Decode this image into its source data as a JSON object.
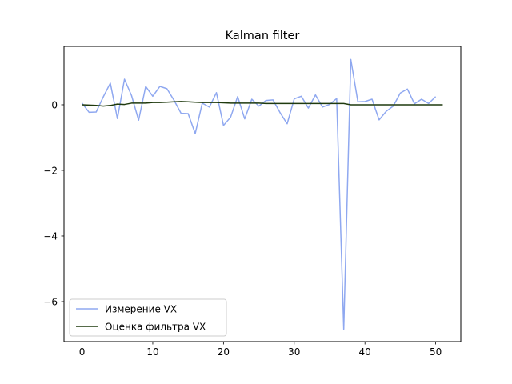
{
  "chart_data": {
    "type": "line",
    "title": "Kalman filter",
    "xlabel": "",
    "ylabel": "",
    "xlim": [
      -2.55,
      53.55
    ],
    "ylim": [
      -7.22,
      1.78
    ],
    "xticks": [
      0,
      10,
      20,
      30,
      40,
      50
    ],
    "yticks": [
      -6,
      -4,
      -2,
      0
    ],
    "ytick_labels": [
      "−6",
      "−4",
      "−2",
      "0"
    ],
    "grid": false,
    "legend_position": "lower-left",
    "series": [
      {
        "name": "Измерение VX",
        "color": "#8fa8f0",
        "x": [
          0,
          1,
          2,
          3,
          4,
          5,
          6,
          7,
          8,
          9,
          10,
          11,
          12,
          13,
          14,
          15,
          16,
          17,
          18,
          19,
          20,
          21,
          22,
          23,
          24,
          25,
          26,
          27,
          28,
          29,
          30,
          31,
          32,
          33,
          34,
          35,
          36,
          37,
          38,
          39,
          40,
          41,
          42,
          43,
          44,
          45,
          46,
          47,
          48,
          49,
          50
        ],
        "y": [
          0.05,
          -0.23,
          -0.22,
          0.24,
          0.66,
          -0.42,
          0.78,
          0.28,
          -0.47,
          0.56,
          0.26,
          0.56,
          0.49,
          0.14,
          -0.26,
          -0.27,
          -0.88,
          0.05,
          -0.07,
          0.37,
          -0.63,
          -0.38,
          0.25,
          -0.43,
          0.17,
          -0.04,
          0.13,
          0.15,
          -0.24,
          -0.58,
          0.18,
          0.26,
          -0.1,
          0.3,
          -0.07,
          0.01,
          0.19,
          -6.85,
          1.38,
          0.09,
          0.1,
          0.17,
          -0.46,
          -0.2,
          -0.04,
          0.36,
          0.48,
          0.03,
          0.17,
          0.04,
          0.25
        ]
      },
      {
        "name": "Оценка фильтра VX",
        "color": "#1f3a0e",
        "x": [
          0,
          1,
          2,
          3,
          4,
          5,
          6,
          7,
          8,
          9,
          10,
          11,
          12,
          13,
          14,
          15,
          16,
          17,
          18,
          19,
          20,
          21,
          22,
          23,
          24,
          25,
          26,
          27,
          28,
          29,
          30,
          31,
          32,
          33,
          34,
          35,
          36,
          37,
          38,
          39,
          40,
          41,
          42,
          43,
          44,
          45,
          46,
          47,
          48,
          49,
          50,
          51
        ],
        "y": [
          0.0,
          -0.01,
          -0.02,
          -0.04,
          -0.02,
          0.02,
          0.01,
          0.05,
          0.05,
          0.05,
          0.07,
          0.07,
          0.08,
          0.09,
          0.1,
          0.09,
          0.08,
          0.07,
          0.07,
          0.07,
          0.06,
          0.05,
          0.05,
          0.05,
          0.05,
          0.05,
          0.04,
          0.04,
          0.04,
          0.04,
          0.04,
          0.04,
          0.04,
          0.04,
          0.04,
          0.04,
          0.04,
          0.04,
          0.0,
          0.0,
          0.0,
          0.0,
          0.0,
          0.0,
          0.0,
          0.0,
          0.0,
          0.0,
          0.0,
          0.0,
          0.0,
          0.0
        ]
      }
    ]
  }
}
